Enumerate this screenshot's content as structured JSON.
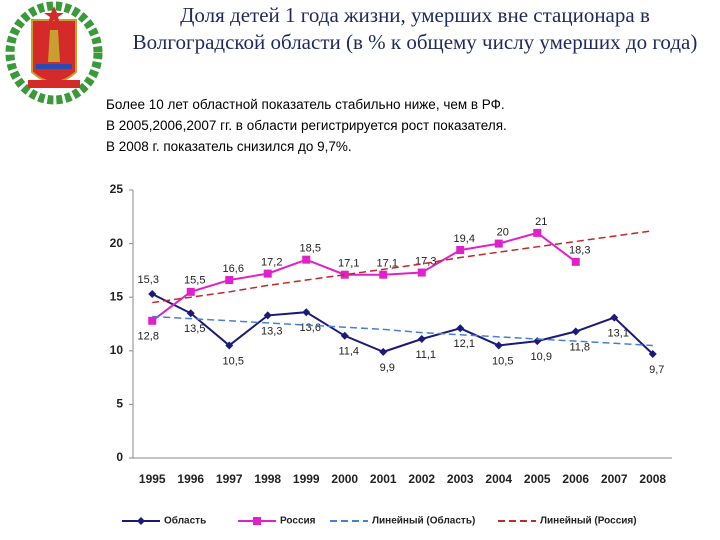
{
  "chart_data": {
    "type": "line",
    "title": "Доля детей 1 года жизни, умерших вне  стационара в Волгоградской области (в % к общему числу умерших до года)",
    "notes": [
      "Более 10 лет областной показатель стабильно ниже, чем в РФ.",
      "В 2005,2006,2007 гг. в области регистрируется рост показателя.",
      "В 2008 г. показатель снизился до 9,7%."
    ],
    "categories": [
      "1995",
      "1996",
      "1997",
      "1998",
      "1999",
      "2000",
      "2001",
      "2002",
      "2003",
      "2004",
      "2005",
      "2006",
      "2007",
      "2008"
    ],
    "series": [
      {
        "name": "Область",
        "color": "#1a1a7a",
        "marker": "diamond",
        "values": [
          15.3,
          13.5,
          10.5,
          13.3,
          13.6,
          11.4,
          9.9,
          11.1,
          12.1,
          10.5,
          10.9,
          11.8,
          13.1,
          9.7
        ],
        "value_labels": [
          "15,3",
          "13,5",
          "10,5",
          "13,3",
          "13,6",
          "11,4",
          "9,9",
          "11,1",
          "12,1",
          "10,5",
          "10,9",
          "11,8",
          "13,1",
          "9,7"
        ]
      },
      {
        "name": "Россия",
        "color": "#e020c8",
        "marker": "square",
        "values": [
          12.8,
          15.5,
          16.6,
          17.2,
          18.5,
          17.1,
          17.1,
          17.3,
          19.4,
          20,
          21,
          18.3,
          null,
          null
        ],
        "value_labels": [
          "12,8",
          "15,5",
          "16,6",
          "17,2",
          "18,5",
          "17,1",
          "17,1",
          "17,3",
          "19,4",
          "20",
          "21",
          "18,3",
          null,
          null
        ]
      },
      {
        "name": "Линейный (Область)",
        "color": "#4a7fd0",
        "dashed": true,
        "values": [
          13.2,
          13.0,
          12.8,
          12.6,
          12.4,
          12.2,
          12.0,
          11.7,
          11.5,
          11.3,
          11.1,
          10.9,
          10.7,
          10.5
        ]
      },
      {
        "name": "Линейный (Россия)",
        "color": "#c0282a",
        "dashed": true,
        "values": [
          14.5,
          15.0,
          15.5,
          16.1,
          16.6,
          17.1,
          17.6,
          18.1,
          18.7,
          19.2,
          19.7,
          20.2,
          20.7,
          21.2
        ]
      }
    ],
    "ylim": [
      0,
      25
    ],
    "yticks": [
      0,
      5,
      10,
      15,
      20,
      25
    ],
    "legend": "bottom"
  }
}
